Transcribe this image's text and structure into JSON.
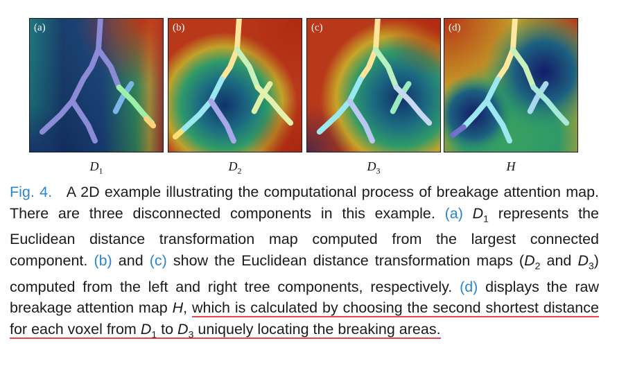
{
  "figure": {
    "panels": [
      {
        "tag": "(a)",
        "var": "D",
        "sub": "1"
      },
      {
        "tag": "(b)",
        "var": "D",
        "sub": "2"
      },
      {
        "tag": "(c)",
        "var": "D",
        "sub": "3"
      },
      {
        "tag": "(d)",
        "var": "H",
        "sub": ""
      }
    ]
  },
  "caption": {
    "fig_label": "Fig. 4.",
    "t1": "A 2D example illustrating the computational process of breakage attention map. There are three disconnected components in this example.",
    "ref_a": "(a)",
    "d1_var": "D",
    "d1_sub": "1",
    "t2": "represents the Euclidean distance transformation map computed from the largest connected component.",
    "ref_b": "(b)",
    "t3": "and",
    "ref_c": "(c)",
    "t4": "show the Euclidean distance transformation maps (",
    "d2_var": "D",
    "d2_sub": "2",
    "t5": "and",
    "d3_var": "D",
    "d3_sub": "3",
    "t6": ") computed from the left and right tree components, respectively.",
    "ref_d": "(d)",
    "t7": "displays the raw breakage attention map",
    "h_var": "H",
    "t8": ",",
    "u1": "which is calculated by choosing the second shortest distance for each voxel from",
    "u_d1_var": "D",
    "u_d1_sub": "1",
    "u2": "to",
    "u_d3_var": "D",
    "u_d3_sub": "3",
    "u3": "uniquely locating the breaking areas."
  },
  "colors": {
    "link": "#2f86c9",
    "underline": "#e8434a"
  }
}
